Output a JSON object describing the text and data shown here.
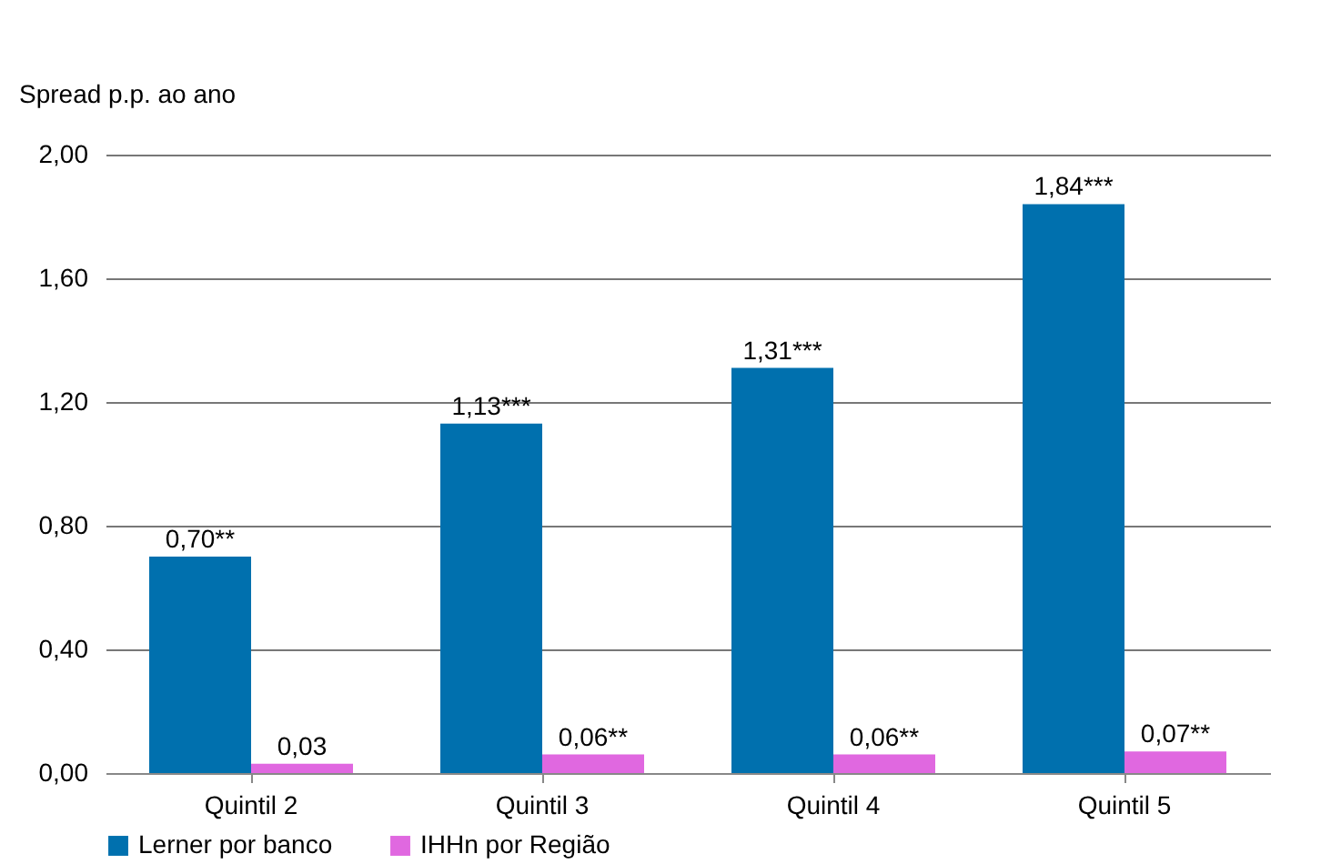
{
  "chart_data": {
    "type": "bar",
    "ylabel": "Spread p.p. ao ano",
    "categories": [
      "Quintil 2",
      "Quintil 3",
      "Quintil 4",
      "Quintil 5"
    ],
    "series": [
      {
        "name": "Lerner por banco",
        "color": "#0070ae",
        "values": [
          0.7,
          1.13,
          1.31,
          1.84
        ],
        "value_labels": [
          "0,70**",
          "1,13***",
          "1,31***",
          "1,84***"
        ]
      },
      {
        "name": "IHHn por Região",
        "color": "#e068e0",
        "values": [
          0.03,
          0.06,
          0.06,
          0.07
        ],
        "value_labels": [
          "0,03",
          "0,06**",
          "0,06**",
          "0,07**"
        ]
      }
    ],
    "ylim": [
      0,
      2
    ],
    "yticks": [
      {
        "value": 0,
        "label": "0,00"
      },
      {
        "value": 0.4,
        "label": "0,40"
      },
      {
        "value": 0.8,
        "label": "0,80"
      },
      {
        "value": 1.2,
        "label": "1,20"
      },
      {
        "value": 1.6,
        "label": "1,60"
      },
      {
        "value": 2,
        "label": "2,00"
      }
    ],
    "grid": "y",
    "legend": "bottom"
  }
}
